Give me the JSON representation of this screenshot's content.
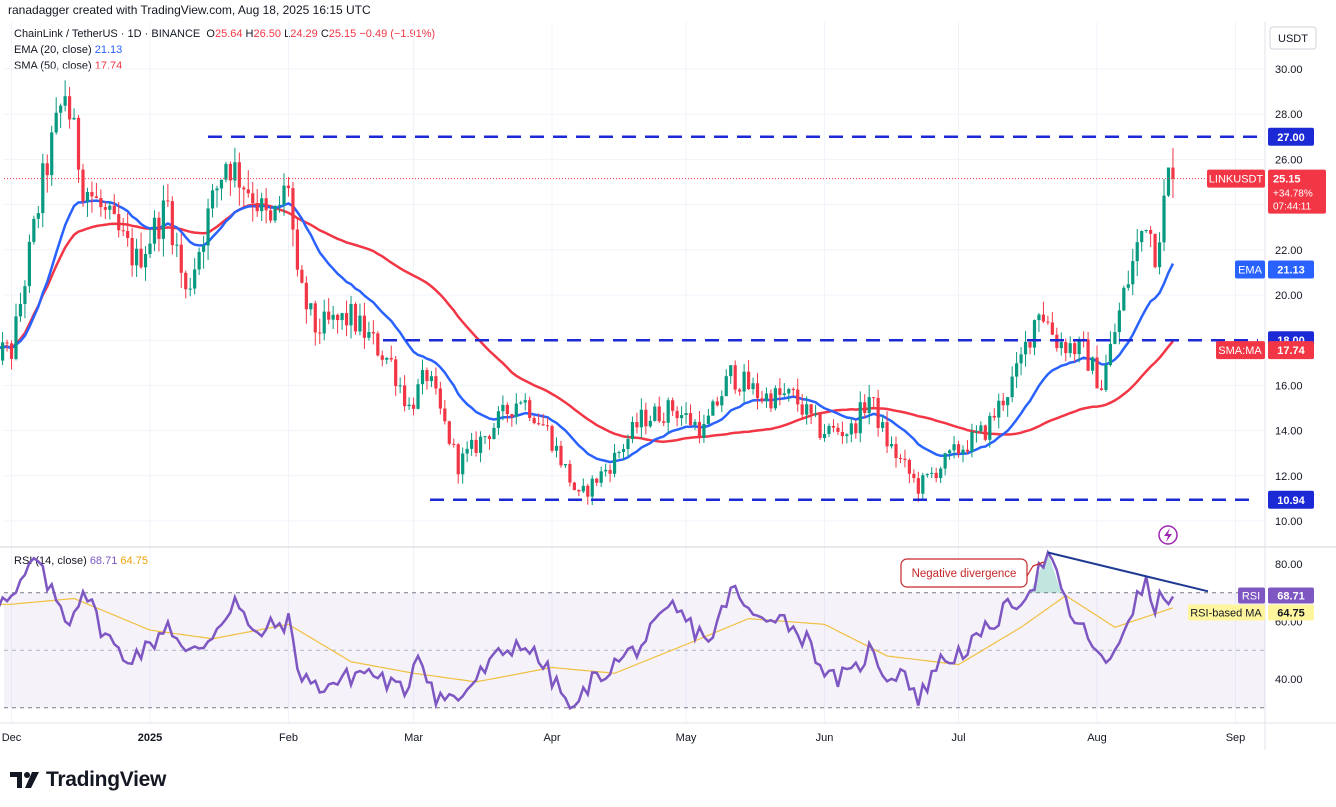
{
  "header": {
    "attribution": "ranadagger created with TradingView.com, Aug 18, 2025 16:15 UTC"
  },
  "symbol_legend": {
    "name": "ChainLink / TetherUS · 1D · BINANCE",
    "o_label": "O",
    "o": "25.64",
    "h_label": "H",
    "h": "26.50",
    "l_label": "L",
    "l": "24.29",
    "c_label": "C",
    "c": "25.15",
    "change": "−0.49 (−1.91%)"
  },
  "ema_legend": {
    "label": "EMA (20, close)",
    "value": "21.13"
  },
  "sma_legend": {
    "label": "SMA (50, close)",
    "value": "17.74"
  },
  "rsi_legend": {
    "label": "RSI (14, close)",
    "value": "68.71",
    "ma_value": "64.75"
  },
  "currency": "USDT",
  "footer": {
    "brand": "TradingView"
  },
  "colors": {
    "up": "#089981",
    "down": "#f23645",
    "ema": "#2962ff",
    "sma": "#f23645",
    "rsi": "#7e57c2",
    "rsi_ma": "#f0c040",
    "level": "#1c2ad6",
    "trend": "#1f3a93"
  },
  "chart_data": [
    {
      "type": "candlestick",
      "title": "ChainLink / TetherUS · 1D · BINANCE",
      "ylim": [
        9.5,
        31
      ],
      "y_ticks": [
        "10.00",
        "12.00",
        "14.00",
        "16.00",
        "18.00",
        "20.00",
        "22.00",
        "26.00",
        "28.00",
        "30.00"
      ],
      "x_ticks": [
        "Dec",
        "2025",
        "Feb",
        "Mar",
        "Apr",
        "May",
        "Jun",
        "Jul",
        "Aug",
        "Sep"
      ],
      "levels": [
        {
          "label": "27.00",
          "value": 27.0
        },
        {
          "label": "18.00",
          "value": 18.0
        },
        {
          "label": "10.94",
          "value": 10.94
        }
      ],
      "price_tags": [
        {
          "name": "LINKUSDT",
          "value": "25.15",
          "change": "+34.78%",
          "timer": "07:44:11"
        },
        {
          "name": "EMA",
          "value": "21.13"
        },
        {
          "name": "SMA:MA",
          "value": "17.74"
        }
      ],
      "close_anchors": [
        [
          "2024-12-01",
          17.5
        ],
        [
          "2024-12-08",
          25.0
        ],
        [
          "2024-12-13",
          29.0
        ],
        [
          "2024-12-17",
          25.0
        ],
        [
          "2024-12-22",
          23.5
        ],
        [
          "2024-12-29",
          21.5
        ],
        [
          "2025-01-05",
          24.0
        ],
        [
          "2025-01-09",
          20.0
        ],
        [
          "2025-01-14",
          23.5
        ],
        [
          "2025-01-18",
          26.0
        ],
        [
          "2025-01-24",
          24.5
        ],
        [
          "2025-01-28",
          23.0
        ],
        [
          "2025-02-01",
          25.0
        ],
        [
          "2025-02-03",
          20.5
        ],
        [
          "2025-02-07",
          18.5
        ],
        [
          "2025-02-15",
          19.0
        ],
        [
          "2025-02-24",
          17.0
        ],
        [
          "2025-02-28",
          15.0
        ],
        [
          "2025-03-04",
          16.5
        ],
        [
          "2025-03-11",
          12.5
        ],
        [
          "2025-03-18",
          14.0
        ],
        [
          "2025-03-25",
          15.5
        ],
        [
          "2025-03-31",
          14.0
        ],
        [
          "2025-04-07",
          11.0
        ],
        [
          "2025-04-14",
          12.5
        ],
        [
          "2025-04-21",
          14.5
        ],
        [
          "2025-04-28",
          15.0
        ],
        [
          "2025-05-05",
          14.0
        ],
        [
          "2025-05-11",
          16.5
        ],
        [
          "2025-05-18",
          15.5
        ],
        [
          "2025-05-25",
          15.5
        ],
        [
          "2025-05-31",
          14.0
        ],
        [
          "2025-06-07",
          14.0
        ],
        [
          "2025-06-11",
          15.5
        ],
        [
          "2025-06-15",
          13.5
        ],
        [
          "2025-06-22",
          11.5
        ],
        [
          "2025-06-30",
          13.0
        ],
        [
          "2025-07-07",
          14.0
        ],
        [
          "2025-07-14",
          16.5
        ],
        [
          "2025-07-19",
          19.5
        ],
        [
          "2025-07-23",
          18.0
        ],
        [
          "2025-07-29",
          17.5
        ],
        [
          "2025-08-02",
          16.0
        ],
        [
          "2025-08-07",
          20.0
        ],
        [
          "2025-08-12",
          23.5
        ],
        [
          "2025-08-14",
          22.0
        ],
        [
          "2025-08-16",
          24.0
        ],
        [
          "2025-08-18",
          25.15
        ]
      ]
    },
    {
      "type": "line",
      "title": "RSI (14, close)",
      "ylim": [
        25,
        88
      ],
      "y_ticks": [
        "80.00",
        "60.00",
        "40.00"
      ],
      "band": [
        30,
        70
      ],
      "annotations": [
        "Negative divergence"
      ],
      "price_tags": [
        {
          "name": "RSI",
          "value": "68.71"
        },
        {
          "name": "RSI-based MA",
          "value": "64.75"
        }
      ],
      "rsi_anchors": [
        [
          "2024-12-01",
          67
        ],
        [
          "2024-12-03",
          72
        ],
        [
          "2024-12-06",
          82
        ],
        [
          "2024-12-10",
          70
        ],
        [
          "2024-12-14",
          60
        ],
        [
          "2024-12-17",
          72
        ],
        [
          "2024-12-21",
          58
        ],
        [
          "2024-12-26",
          47
        ],
        [
          "2025-01-01",
          51
        ],
        [
          "2025-01-05",
          60
        ],
        [
          "2025-01-09",
          48
        ],
        [
          "2025-01-13",
          52
        ],
        [
          "2025-01-17",
          60
        ],
        [
          "2025-01-20",
          68
        ],
        [
          "2025-01-24",
          55
        ],
        [
          "2025-01-28",
          58
        ],
        [
          "2025-02-01",
          60
        ],
        [
          "2025-02-03",
          44
        ],
        [
          "2025-02-07",
          37
        ],
        [
          "2025-02-12",
          39
        ],
        [
          "2025-02-18",
          43
        ],
        [
          "2025-02-22",
          40
        ],
        [
          "2025-02-27",
          35
        ],
        [
          "2025-03-02",
          50
        ],
        [
          "2025-03-06",
          34
        ],
        [
          "2025-03-11",
          33
        ],
        [
          "2025-03-15",
          40
        ],
        [
          "2025-03-20",
          48
        ],
        [
          "2025-03-25",
          53
        ],
        [
          "2025-03-30",
          45
        ],
        [
          "2025-04-06",
          28
        ],
        [
          "2025-04-09",
          38
        ],
        [
          "2025-04-14",
          44
        ],
        [
          "2025-04-21",
          52
        ],
        [
          "2025-04-28",
          65
        ],
        [
          "2025-05-03",
          57
        ],
        [
          "2025-05-07",
          54
        ],
        [
          "2025-05-11",
          72
        ],
        [
          "2025-05-16",
          61
        ],
        [
          "2025-05-21",
          63
        ],
        [
          "2025-05-25",
          58
        ],
        [
          "2025-05-29",
          52
        ],
        [
          "2025-06-02",
          40
        ],
        [
          "2025-06-07",
          41
        ],
        [
          "2025-06-11",
          50
        ],
        [
          "2025-06-15",
          41
        ],
        [
          "2025-06-19",
          43
        ],
        [
          "2025-06-22",
          32
        ],
        [
          "2025-06-26",
          45
        ],
        [
          "2025-06-30",
          48
        ],
        [
          "2025-07-05",
          53
        ],
        [
          "2025-07-09",
          60
        ],
        [
          "2025-07-13",
          66
        ],
        [
          "2025-07-17",
          71
        ],
        [
          "2025-07-21",
          84
        ],
        [
          "2025-07-24",
          70
        ],
        [
          "2025-07-27",
          60
        ],
        [
          "2025-07-31",
          53
        ],
        [
          "2025-08-03",
          43
        ],
        [
          "2025-08-06",
          54
        ],
        [
          "2025-08-09",
          65
        ],
        [
          "2025-08-12",
          73
        ],
        [
          "2025-08-14",
          64
        ],
        [
          "2025-08-16",
          70
        ],
        [
          "2025-08-18",
          68.7
        ]
      ],
      "rsi_ma_anchors": [
        [
          "2024-12-01",
          66
        ],
        [
          "2024-12-15",
          68
        ],
        [
          "2025-01-01",
          57
        ],
        [
          "2025-01-15",
          54
        ],
        [
          "2025-02-01",
          59
        ],
        [
          "2025-02-15",
          46
        ],
        [
          "2025-03-01",
          42
        ],
        [
          "2025-03-15",
          39
        ],
        [
          "2025-04-01",
          44
        ],
        [
          "2025-04-15",
          42
        ],
        [
          "2025-05-01",
          52
        ],
        [
          "2025-05-15",
          61
        ],
        [
          "2025-06-01",
          59
        ],
        [
          "2025-06-15",
          48
        ],
        [
          "2025-07-01",
          45
        ],
        [
          "2025-07-15",
          58
        ],
        [
          "2025-07-25",
          69
        ],
        [
          "2025-08-05",
          58
        ],
        [
          "2025-08-18",
          64.75
        ]
      ]
    }
  ]
}
